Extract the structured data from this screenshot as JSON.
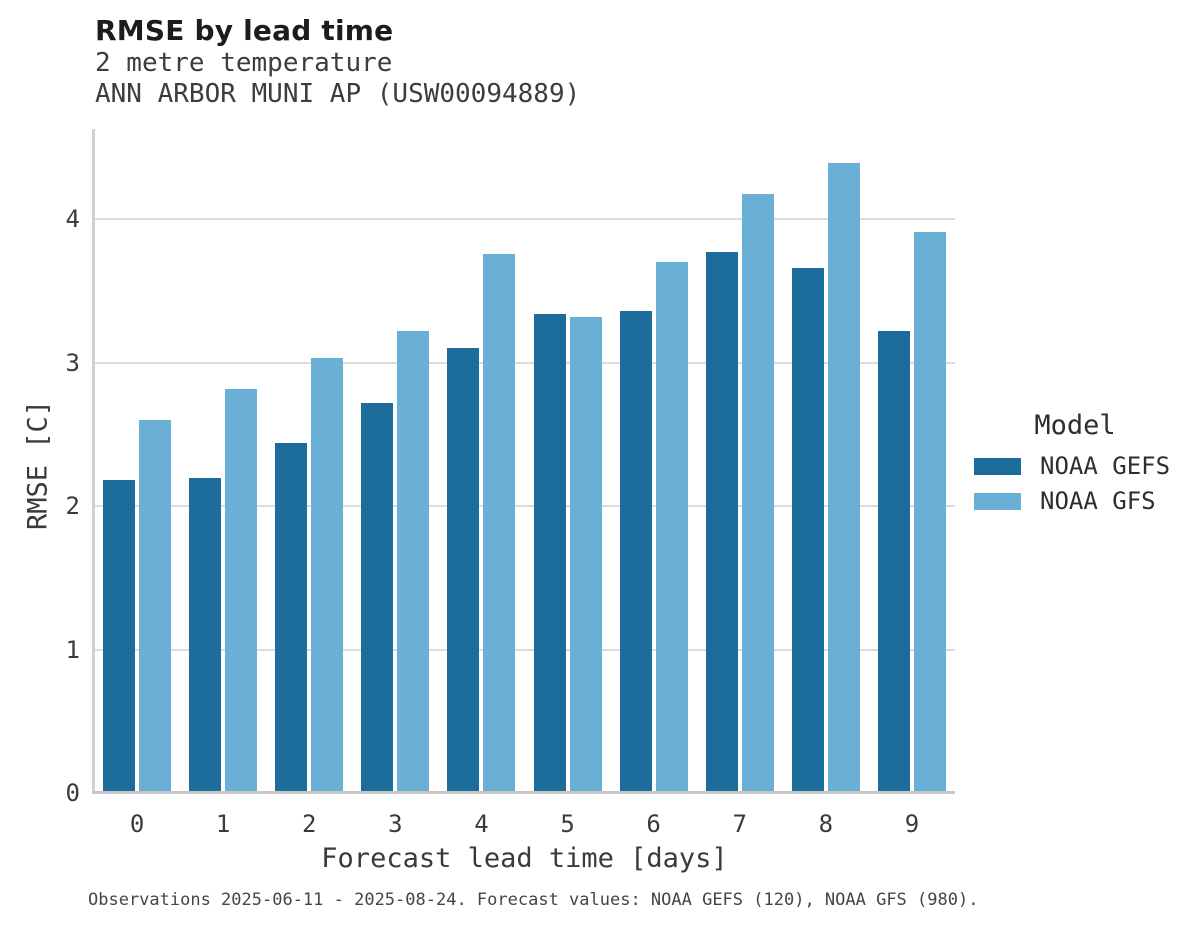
{
  "header": {
    "title": "RMSE by lead time",
    "subtitle": "2 metre temperature",
    "station": "ANN ARBOR MUNI AP (USW00094889)"
  },
  "legend": {
    "title": "Model",
    "entries": [
      {
        "label": "NOAA GEFS",
        "color": "#1c6d9c"
      },
      {
        "label": "NOAA GFS",
        "color": "#6aafd6"
      }
    ]
  },
  "footer": {
    "note": "Observations 2025-06-11 - 2025-08-24. Forecast values: NOAA GEFS (120), NOAA GFS (980)."
  },
  "colors": {
    "gridline": "#dcdcdc",
    "axis_spine": "#c6c6c6",
    "series_dark": "#1c6d9c",
    "series_light": "#6aafd6"
  },
  "chart_data": {
    "type": "bar",
    "title": "RMSE by lead time",
    "subtitle": "2 metre temperature",
    "station": "ANN ARBOR MUNI AP (USW00094889)",
    "xlabel": "Forecast lead time [days]",
    "ylabel": "RMSE [C]",
    "categories": [
      "0",
      "1",
      "2",
      "3",
      "4",
      "5",
      "6",
      "7",
      "8",
      "9"
    ],
    "series": [
      {
        "name": "NOAA GEFS",
        "color": "#1c6d9c",
        "values": [
          2.18,
          2.2,
          2.44,
          2.72,
          3.1,
          3.34,
          3.36,
          3.77,
          3.66,
          3.22
        ]
      },
      {
        "name": "NOAA GFS",
        "color": "#6aafd6",
        "values": [
          2.6,
          2.82,
          3.03,
          3.22,
          3.76,
          3.32,
          3.7,
          4.18,
          4.39,
          3.91
        ]
      }
    ],
    "yticks": [
      0,
      1,
      2,
      3,
      4
    ],
    "ylim": [
      0,
      4.63
    ],
    "grid": "horizontal",
    "legend_title": "Model",
    "legend_position": "right",
    "footnote": "Observations 2025-06-11 - 2025-08-24. Forecast values: NOAA GEFS (120), NOAA GFS (980)."
  }
}
